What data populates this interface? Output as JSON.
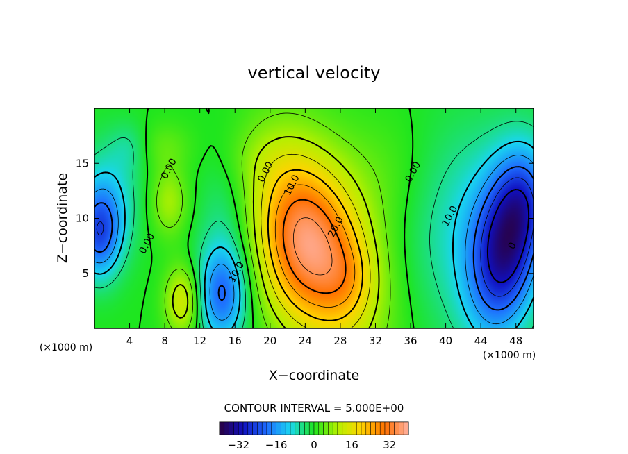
{
  "chart_data": {
    "type": "heatmap",
    "title": "vertical velocity",
    "xlabel": "X−coordinate",
    "ylabel": "Z−coordinate",
    "x_unit": "(×1000 m)",
    "y_unit": "(×1000 m)",
    "xlim": [
      0,
      50
    ],
    "ylim": [
      0,
      20
    ],
    "x_ticks": [
      4,
      8,
      12,
      16,
      20,
      24,
      28,
      32,
      36,
      40,
      44,
      48
    ],
    "y_ticks": [
      5,
      10,
      15
    ],
    "contour_interval_text": "CONTOUR INTERVAL = 5.000E+00",
    "colorbar": {
      "range": [
        -40,
        40
      ],
      "ticks": [
        -32,
        -16,
        0,
        16,
        32
      ]
    },
    "contour_labels": [
      {
        "text": "0.00",
        "x": 8.5,
        "z": 14.5
      },
      {
        "text": "0.00",
        "x": 6.0,
        "z": 7.7
      },
      {
        "text": "0.00",
        "x": 19.5,
        "z": 14.2
      },
      {
        "text": "0.00",
        "x": 36.3,
        "z": 14.2
      },
      {
        "text": "10.0",
        "x": 22.5,
        "z": 13.0
      },
      {
        "text": "20.0",
        "x": 27.5,
        "z": 9.2
      },
      {
        "text": "10.0",
        "x": 16.2,
        "z": 5.1
      },
      {
        "text": "10.0",
        "x": 40.5,
        "z": 10.2
      },
      {
        "text": "0",
        "x": 47.6,
        "z": 7.5
      }
    ],
    "features": [
      {
        "name": "updraft",
        "x": 25.0,
        "z": 7.0,
        "value": 36
      },
      {
        "name": "downdraft",
        "x": 47.0,
        "z": 7.5,
        "value": -30
      },
      {
        "name": "downdraft",
        "x": 14.5,
        "z": 3.0,
        "value": -18
      },
      {
        "name": "downdraft",
        "x": 0.5,
        "z": 8.5,
        "value": -20
      },
      {
        "name": "updraft",
        "x": 10.0,
        "z": 2.5,
        "value": 13
      },
      {
        "name": "updraft",
        "x": 8.5,
        "z": 11.5,
        "value": 9
      }
    ]
  }
}
